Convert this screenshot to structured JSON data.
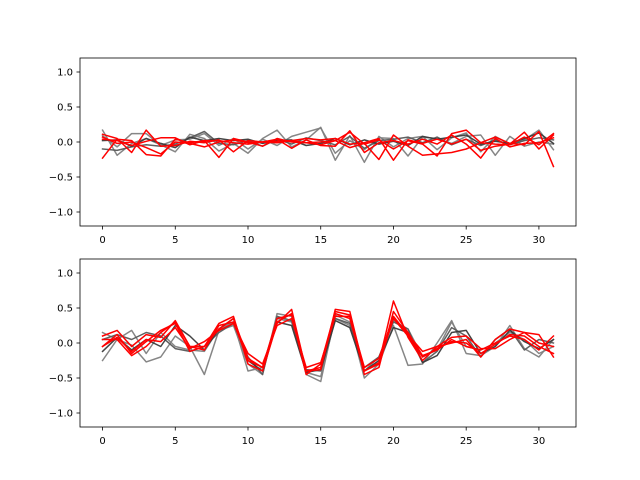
{
  "figure": {
    "background": "#ffffff"
  },
  "chart_data": [
    {
      "type": "line",
      "xlim": [
        -1.55,
        32.55
      ],
      "ylim": [
        -1.2,
        1.2
      ],
      "xticks": [
        0,
        5,
        10,
        15,
        20,
        25,
        30
      ],
      "xtick_labels": [
        "0",
        "5",
        "10",
        "15",
        "20",
        "25",
        "30"
      ],
      "yticks": [
        1.0,
        0.5,
        0.0,
        -0.5,
        -1.0
      ],
      "ytick_labels": [
        "1.0",
        "0.5",
        "0.0",
        "−0.5",
        "−1.0"
      ],
      "grid": false,
      "x": [
        0,
        1,
        2,
        3,
        4,
        5,
        6,
        7,
        8,
        9,
        10,
        11,
        12,
        13,
        14,
        15,
        16,
        17,
        18,
        19,
        20,
        21,
        22,
        23,
        24,
        25,
        26,
        27,
        28,
        29,
        30,
        31
      ],
      "series": [
        {
          "color": "#7f7f7f",
          "values": [
            0.17,
            -0.19,
            -0.02,
            0.05,
            -0.04,
            -0.14,
            0.11,
            0.05,
            -0.13,
            -0.02,
            -0.16,
            0.05,
            0.17,
            -0.07,
            0.03,
            0.21,
            -0.26,
            0.09,
            -0.29,
            0.08,
            -0.07,
            0.05,
            0.08,
            -0.11,
            0.06,
            0.13,
            -0.14,
            0.08,
            -0.03,
            0.03,
            0.17,
            -0.11
          ]
        },
        {
          "color": "#7f7f7f",
          "values": [
            0.09,
            -0.07,
            0.12,
            0.12,
            -0.05,
            0.03,
            0.04,
            0.12,
            -0.05,
            0.05,
            -0.1,
            0.04,
            -0.05,
            0.08,
            0.14,
            0.2,
            -0.16,
            0.02,
            -0.11,
            0.06,
            0.05,
            -0.2,
            0.07,
            0.05,
            -0.02,
            0.08,
            0.1,
            -0.19,
            0.08,
            -0.06,
            0.0,
            -0.03
          ]
        },
        {
          "color": "#595959",
          "values": [
            -0.1,
            -0.12,
            -0.07,
            -0.04,
            -0.06,
            -0.03,
            0.06,
            0.15,
            -0.02,
            -0.04,
            0.02,
            -0.06,
            0.04,
            -0.03,
            0.06,
            0.02,
            -0.04,
            0.08,
            -0.09,
            0.02,
            0.04,
            0.07,
            -0.01,
            0.07,
            -0.04,
            0.04,
            -0.05,
            0.03,
            -0.04,
            0.02,
            0.06,
            0.03
          ]
        },
        {
          "color": "#3a3a3a",
          "values": [
            0.02,
            0.03,
            -0.06,
            0.05,
            -0.02,
            -0.08,
            0.07,
            0.02,
            0.05,
            0.02,
            0.04,
            -0.02,
            0.02,
            0.03,
            -0.05,
            -0.02,
            0.05,
            -0.04,
            0.03,
            -0.03,
            0.01,
            -0.05,
            0.08,
            0.04,
            0.07,
            0.1,
            -0.03,
            0.01,
            -0.02,
            0.05,
            0.13,
            -0.02
          ]
        },
        {
          "color": "#ff0000",
          "values": [
            0.07,
            -0.02,
            0.0,
            -0.08,
            -0.17,
            0.0,
            -0.02,
            -0.07,
            0.0,
            0.03,
            -0.01,
            0.0,
            0.01,
            0.02,
            -0.01,
            -0.04,
            0.02,
            0.14,
            -0.03,
            0.03,
            -0.1,
            0.02,
            -0.03,
            -0.2,
            0.12,
            0.17,
            -0.01,
            0.07,
            -0.02,
            -0.04,
            0.15,
            -0.35
          ]
        },
        {
          "color": "#ff0000",
          "values": [
            -0.23,
            0.04,
            0.02,
            -0.18,
            -0.2,
            0.04,
            -0.01,
            0.02,
            0.02,
            -0.01,
            -0.03,
            0.0,
            0.04,
            -0.09,
            0.03,
            -0.05,
            -0.06,
            0.16,
            -0.15,
            -0.01,
            0.02,
            -0.03,
            0.04,
            -0.03,
            0.1,
            -0.03,
            -0.23,
            0.05,
            -0.07,
            -0.02,
            -0.01,
            0.06
          ]
        },
        {
          "color": "#ff0000",
          "values": [
            0.11,
            0.05,
            -0.15,
            0.17,
            -0.06,
            -0.05,
            0.01,
            -0.01,
            0.03,
            -0.14,
            0.02,
            0.0,
            -0.01,
            0.02,
            0.05,
            0.03,
            0.05,
            -0.03,
            -0.01,
            0.05,
            -0.26,
            0.03,
            -0.02,
            0.04,
            -0.03,
            0.04,
            -0.12,
            -0.06,
            -0.03,
            0.14,
            -0.1,
            0.1
          ]
        },
        {
          "color": "#ff0000",
          "values": [
            0.04,
            0.02,
            -0.05,
            0.01,
            0.06,
            0.06,
            -0.04,
            0.02,
            -0.22,
            0.05,
            0.0,
            -0.06,
            0.05,
            0.0,
            -0.01,
            0.0,
            0.02,
            -0.08,
            -0.02,
            -0.25,
            0.1,
            -0.06,
            -0.19,
            -0.17,
            -0.15,
            -0.1,
            -0.01,
            -0.03,
            -0.04,
            0.07,
            -0.04,
            0.12
          ]
        }
      ]
    },
    {
      "type": "line",
      "xlim": [
        -1.55,
        32.55
      ],
      "ylim": [
        -1.2,
        1.2
      ],
      "xticks": [
        0,
        5,
        10,
        15,
        20,
        25,
        30
      ],
      "xtick_labels": [
        "0",
        "5",
        "10",
        "15",
        "20",
        "25",
        "30"
      ],
      "yticks": [
        1.0,
        0.5,
        0.0,
        -0.5,
        -1.0
      ],
      "ytick_labels": [
        "1.0",
        "0.5",
        "0.0",
        "−0.5",
        "−1.0"
      ],
      "grid": false,
      "x": [
        0,
        1,
        2,
        3,
        4,
        5,
        6,
        7,
        8,
        9,
        10,
        11,
        12,
        13,
        14,
        15,
        16,
        17,
        18,
        19,
        20,
        21,
        22,
        23,
        24,
        25,
        26,
        27,
        28,
        29,
        30,
        31
      ],
      "series": [
        {
          "color": "#7f7f7f",
          "values": [
            -0.25,
            0.05,
            -0.03,
            -0.27,
            -0.2,
            0.1,
            -0.05,
            -0.45,
            0.18,
            0.25,
            -0.3,
            -0.45,
            0.42,
            0.38,
            -0.45,
            -0.55,
            0.4,
            0.3,
            -0.5,
            -0.3,
            0.25,
            -0.32,
            -0.3,
            0.0,
            0.32,
            -0.15,
            -0.18,
            -0.05,
            0.25,
            -0.08,
            -0.2,
            0.05
          ]
        },
        {
          "color": "#7f7f7f",
          "values": [
            0.15,
            0.05,
            0.18,
            -0.15,
            0.15,
            -0.05,
            -0.1,
            -0.12,
            0.2,
            0.3,
            -0.4,
            -0.35,
            0.35,
            0.3,
            -0.42,
            -0.48,
            0.35,
            0.25,
            -0.4,
            -0.2,
            0.32,
            0.2,
            -0.2,
            -0.1,
            0.3,
            -0.05,
            -0.1,
            0.0,
            0.15,
            0.05,
            -0.15,
            -0.05
          ]
        },
        {
          "color": "#595959",
          "values": [
            0.05,
            0.12,
            0.05,
            0.15,
            0.1,
            -0.08,
            -0.12,
            -0.05,
            0.15,
            0.28,
            -0.2,
            -0.45,
            0.38,
            0.32,
            -0.38,
            -0.4,
            0.35,
            0.28,
            -0.35,
            -0.2,
            0.3,
            0.2,
            -0.28,
            -0.12,
            0.22,
            0.1,
            -0.2,
            0.05,
            0.2,
            -0.1,
            0.05,
            0.0
          ]
        },
        {
          "color": "#3a3a3a",
          "values": [
            -0.12,
            0.08,
            -0.1,
            0.05,
            -0.05,
            0.25,
            0.1,
            -0.1,
            0.2,
            0.35,
            -0.25,
            -0.4,
            0.3,
            0.25,
            -0.42,
            -0.38,
            0.32,
            0.22,
            -0.4,
            -0.25,
            0.22,
            0.15,
            -0.28,
            -0.18,
            0.15,
            0.18,
            -0.15,
            -0.05,
            0.18,
            0.02,
            -0.08,
            0.05
          ]
        },
        {
          "color": "#ff0000",
          "values": [
            0.1,
            0.18,
            -0.05,
            0.12,
            0.08,
            0.32,
            -0.05,
            -0.05,
            0.28,
            0.38,
            -0.3,
            -0.4,
            0.28,
            0.48,
            -0.4,
            -0.38,
            0.48,
            0.45,
            -0.4,
            -0.28,
            0.6,
            0.08,
            -0.25,
            -0.05,
            0.0,
            0.05,
            -0.2,
            0.05,
            0.2,
            0.15,
            0.0,
            -0.05
          ]
        },
        {
          "color": "#ff0000",
          "values": [
            -0.05,
            0.12,
            -0.15,
            0.02,
            0.18,
            0.28,
            -0.12,
            -0.05,
            0.2,
            0.35,
            -0.22,
            -0.35,
            0.35,
            0.4,
            -0.45,
            -0.3,
            0.45,
            0.4,
            -0.45,
            -0.35,
            0.45,
            0.15,
            -0.18,
            -0.1,
            0.05,
            -0.05,
            -0.1,
            0.0,
            0.1,
            0.05,
            -0.1,
            0.1
          ]
        },
        {
          "color": "#ff0000",
          "values": [
            0.05,
            0.05,
            -0.18,
            -0.05,
            0.15,
            0.3,
            -0.05,
            -0.1,
            0.25,
            0.3,
            -0.25,
            -0.35,
            0.3,
            0.42,
            -0.4,
            -0.35,
            0.42,
            0.35,
            -0.4,
            -0.3,
            0.35,
            0.1,
            -0.2,
            -0.08,
            0.02,
            0.0,
            -0.15,
            -0.02,
            0.12,
            0.1,
            -0.05,
            -0.15
          ]
        },
        {
          "color": "#ff0000",
          "values": [
            -0.05,
            0.08,
            -0.12,
            0.05,
            0.02,
            0.22,
            -0.08,
            0.02,
            0.18,
            0.28,
            -0.15,
            -0.3,
            0.25,
            0.35,
            -0.35,
            -0.28,
            0.38,
            0.38,
            -0.35,
            -0.22,
            0.38,
            0.12,
            -0.12,
            -0.05,
            0.08,
            0.1,
            -0.08,
            -0.08,
            0.05,
            0.15,
            0.12,
            -0.2
          ]
        }
      ]
    }
  ]
}
